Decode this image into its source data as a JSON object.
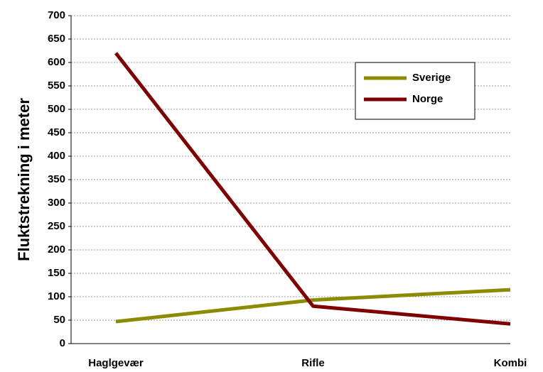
{
  "chart_data": {
    "type": "line",
    "y_label": "Fluktstrekning i meter",
    "categories": [
      "Haglgevær",
      "Rifle",
      "Kombi"
    ],
    "series": [
      {
        "name": "Sverige",
        "color": "#8b8b00",
        "values": [
          47,
          93,
          115
        ]
      },
      {
        "name": "Norge",
        "color": "#800000",
        "values": [
          620,
          80,
          42
        ]
      }
    ],
    "ylim": [
      0,
      700
    ],
    "yticks": [
      0,
      50,
      100,
      150,
      200,
      250,
      300,
      350,
      400,
      450,
      500,
      550,
      600,
      650,
      700
    ],
    "grid": true,
    "legend": "upper right"
  }
}
